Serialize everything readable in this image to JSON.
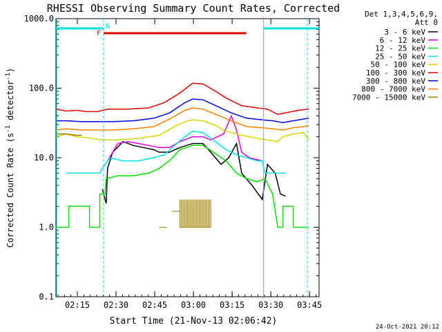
{
  "chart_data": {
    "type": "line",
    "title": "RHESSI Observing Summary Count Rates, Corrected",
    "xlabel": "Start Time (21-Nov-13 02:06:42)",
    "ylabel_main": "Corrected Count Rate (s",
    "ylabel_sup1": "-1",
    "ylabel_mid": " detector",
    "ylabel_sup2": "-1",
    "ylabel_end": ")",
    "yscale": "log",
    "ylim": [
      0.1,
      1000
    ],
    "xlim_minutes": [
      0,
      102
    ],
    "xticks": [
      {
        "t": 8.3,
        "label": "02:15"
      },
      {
        "t": 23.3,
        "label": "02:30"
      },
      {
        "t": 38.3,
        "label": "02:45"
      },
      {
        "t": 53.3,
        "label": "03:00"
      },
      {
        "t": 68.3,
        "label": "03:15"
      },
      {
        "t": 83.3,
        "label": "03:30"
      },
      {
        "t": 98.3,
        "label": "03:45"
      }
    ],
    "yticks": [
      {
        "v": 1000,
        "label": "1000.0"
      },
      {
        "v": 100,
        "label": "100.0"
      },
      {
        "v": 10,
        "label": "10.0"
      },
      {
        "v": 1,
        "label": "1.0"
      },
      {
        "v": 0.1,
        "label": "0.1"
      }
    ],
    "legend_header": [
      "Det 1,3,4,5,6,9,",
      "Att 0"
    ],
    "legend_position": "right",
    "series": [
      {
        "name": "3 - 6 keV",
        "color": "#000000",
        "points": [
          [
            18,
            3.5
          ],
          [
            19.5,
            2.2
          ],
          [
            20,
            7
          ],
          [
            22,
            12
          ],
          [
            26,
            17
          ],
          [
            30,
            15
          ],
          [
            34,
            14
          ],
          [
            38,
            13
          ],
          [
            40,
            12
          ],
          [
            44,
            12
          ],
          [
            48,
            14
          ],
          [
            53,
            16
          ],
          [
            57,
            16
          ],
          [
            60,
            12
          ],
          [
            64,
            8
          ],
          [
            67,
            10
          ],
          [
            70,
            16
          ],
          [
            72,
            6
          ],
          [
            76,
            4
          ],
          [
            80,
            2.5
          ],
          [
            82,
            8
          ],
          [
            85,
            6
          ],
          [
            87,
            3
          ],
          [
            89,
            2.8
          ]
        ]
      },
      {
        "name": "6 - 12 keV",
        "color": "#e000e0",
        "points": [
          [
            20,
            9
          ],
          [
            24,
            16
          ],
          [
            28,
            17
          ],
          [
            32,
            16
          ],
          [
            36,
            15
          ],
          [
            40,
            14
          ],
          [
            44,
            14
          ],
          [
            48,
            17
          ],
          [
            53,
            20
          ],
          [
            57,
            20
          ],
          [
            60,
            18
          ],
          [
            65,
            22
          ],
          [
            68,
            40
          ],
          [
            70,
            25
          ],
          [
            72,
            12
          ],
          [
            75,
            10
          ],
          [
            80,
            9
          ]
        ]
      },
      {
        "name": "12 - 25 keV",
        "color": "#00e000",
        "points": [
          [
            0,
            1
          ],
          [
            5,
            1
          ],
          [
            5,
            2
          ],
          [
            13,
            2
          ],
          [
            13,
            1
          ],
          [
            17,
            1
          ],
          [
            17,
            3
          ],
          [
            19,
            3
          ],
          [
            19.5,
            5
          ],
          [
            24,
            5.5
          ],
          [
            30,
            5.5
          ],
          [
            36,
            6
          ],
          [
            40,
            7
          ],
          [
            44,
            9
          ],
          [
            48,
            13
          ],
          [
            53,
            15
          ],
          [
            57,
            15
          ],
          [
            61,
            12
          ],
          [
            66,
            9
          ],
          [
            70,
            6
          ],
          [
            74,
            5
          ],
          [
            78,
            4.5
          ],
          [
            81,
            5
          ],
          [
            84,
            3
          ],
          [
            86,
            1
          ],
          [
            88,
            1
          ],
          [
            88,
            2
          ],
          [
            92,
            2
          ],
          [
            92,
            1
          ],
          [
            98,
            1
          ]
        ]
      },
      {
        "name": "25 - 50 keV",
        "color": "#00e0e0",
        "points": [
          [
            4,
            6
          ],
          [
            10,
            6
          ],
          [
            14,
            6
          ],
          [
            17,
            6
          ],
          [
            19,
            8
          ],
          [
            21,
            10
          ],
          [
            26,
            9
          ],
          [
            32,
            9
          ],
          [
            38,
            10
          ],
          [
            42,
            11
          ],
          [
            46,
            15
          ],
          [
            50,
            20
          ],
          [
            53,
            24
          ],
          [
            57,
            23
          ],
          [
            61,
            18
          ],
          [
            66,
            13
          ],
          [
            70,
            11
          ],
          [
            74,
            10
          ],
          [
            78,
            9
          ],
          [
            80,
            9
          ],
          [
            81,
            6
          ],
          [
            86,
            6
          ],
          [
            89,
            6
          ]
        ]
      },
      {
        "name": "50 - 100 keV",
        "color": "#d8d800",
        "points": [
          [
            0,
            20
          ],
          [
            4,
            22
          ],
          [
            8,
            20
          ],
          [
            14,
            19
          ],
          [
            18,
            18
          ],
          [
            24,
            18
          ],
          [
            32,
            19
          ],
          [
            40,
            21
          ],
          [
            46,
            28
          ],
          [
            50,
            33
          ],
          [
            53,
            35
          ],
          [
            57,
            34
          ],
          [
            61,
            30
          ],
          [
            66,
            24
          ],
          [
            72,
            21
          ],
          [
            78,
            19
          ],
          [
            82,
            18
          ],
          [
            86,
            17
          ],
          [
            88,
            20
          ],
          [
            92,
            22
          ],
          [
            96,
            23
          ],
          [
            98,
            18
          ]
        ]
      },
      {
        "name": "100 - 300 keV",
        "color": "#e00000",
        "points": [
          [
            0,
            50
          ],
          [
            4,
            47
          ],
          [
            8,
            48
          ],
          [
            12,
            46
          ],
          [
            16,
            46
          ],
          [
            20,
            50
          ],
          [
            28,
            50
          ],
          [
            36,
            52
          ],
          [
            42,
            62
          ],
          [
            48,
            85
          ],
          [
            53,
            118
          ],
          [
            57,
            115
          ],
          [
            62,
            90
          ],
          [
            66,
            72
          ],
          [
            72,
            56
          ],
          [
            78,
            52
          ],
          [
            82,
            50
          ],
          [
            86,
            42
          ],
          [
            90,
            45
          ],
          [
            94,
            48
          ],
          [
            98,
            50
          ]
        ]
      },
      {
        "name": "300 - 800 keV",
        "color": "#0000e0",
        "points": [
          [
            0,
            34
          ],
          [
            4,
            34
          ],
          [
            10,
            33
          ],
          [
            16,
            33
          ],
          [
            22,
            33
          ],
          [
            30,
            34
          ],
          [
            38,
            37
          ],
          [
            44,
            44
          ],
          [
            50,
            62
          ],
          [
            53,
            70
          ],
          [
            57,
            68
          ],
          [
            62,
            56
          ],
          [
            68,
            44
          ],
          [
            74,
            37
          ],
          [
            80,
            35
          ],
          [
            84,
            34
          ],
          [
            88,
            32
          ],
          [
            92,
            34
          ],
          [
            96,
            36
          ],
          [
            98,
            37
          ]
        ]
      },
      {
        "name": "800 - 7000 keV",
        "color": "#ff8000",
        "points": [
          [
            0,
            25
          ],
          [
            4,
            26
          ],
          [
            10,
            25
          ],
          [
            16,
            25
          ],
          [
            22,
            25
          ],
          [
            30,
            26
          ],
          [
            38,
            28
          ],
          [
            44,
            36
          ],
          [
            50,
            48
          ],
          [
            53,
            52
          ],
          [
            57,
            50
          ],
          [
            62,
            42
          ],
          [
            68,
            34
          ],
          [
            74,
            28
          ],
          [
            80,
            27
          ],
          [
            84,
            26
          ],
          [
            88,
            25
          ],
          [
            92,
            27
          ],
          [
            96,
            28
          ],
          [
            98,
            29
          ]
        ]
      },
      {
        "name": "7000 - 15000 keV",
        "color": "#9a7a00",
        "points": [
          [
            0,
            22
          ],
          [
            4,
            22
          ],
          [
            8,
            21
          ],
          [
            10,
            21
          ]
        ]
      }
    ],
    "burst_7000": {
      "segments": [
        [
          [
            40,
            1.0
          ],
          [
            43,
            1.0
          ]
        ],
        [
          [
            45,
            1.7
          ],
          [
            48,
            1.7
          ]
        ],
        [
          [
            48,
            1.0
          ],
          [
            60,
            1.0
          ]
        ]
      ],
      "bars_from": 48,
      "bars_to": 60,
      "bars_low": 1.0,
      "bars_high": 2.5
    },
    "flag_F": {
      "label": "F",
      "start": 18.5,
      "end": 73.8,
      "color": "#e00000"
    },
    "flag_N": {
      "label": "N",
      "color": "#00e0e0",
      "segments": [
        [
          0,
          18.5
        ],
        [
          80.5,
          102
        ]
      ]
    },
    "vertical_dashed_lines": [
      18.5,
      97.5
    ],
    "vertical_solid_lines": [
      80.5
    ],
    "footer_date": "24-Oct-2021 20:12"
  }
}
